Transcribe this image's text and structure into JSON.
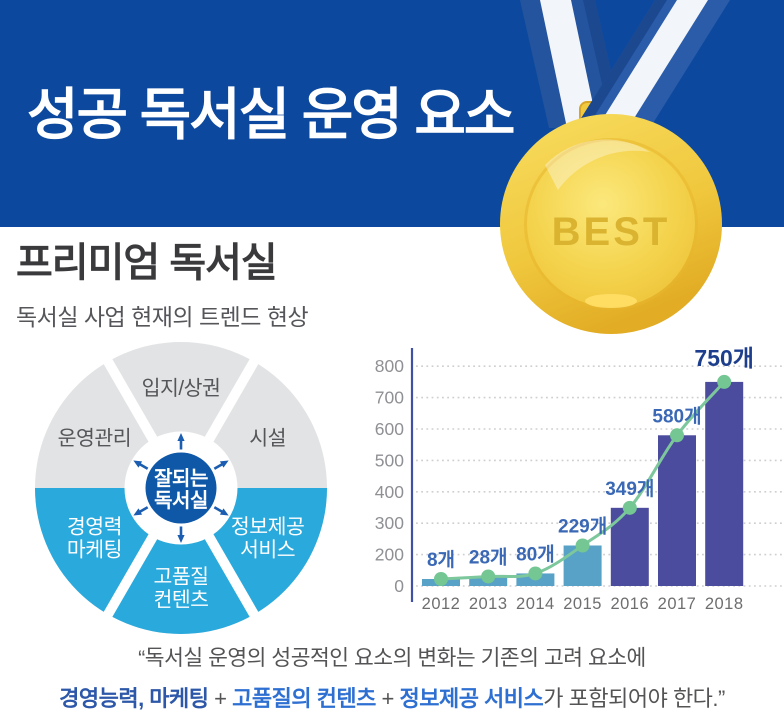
{
  "header": {
    "title": "성공 독서실 운영 요소",
    "background_color": "#0c499e"
  },
  "medal": {
    "label": "BEST",
    "gold_color": "#f0c83e",
    "ribbon_blue": "#2a5caa"
  },
  "section": {
    "title": "프리미엄 독서실",
    "subtitle": "독서실 사업 현재의 트렌드 현상"
  },
  "donut": {
    "center_label_lines": [
      "잘되는",
      "독서실"
    ],
    "segments": [
      {
        "lines": [
          "운영관리"
        ],
        "angle": 150,
        "group": "top"
      },
      {
        "lines": [
          "입지/상권"
        ],
        "angle": 90,
        "group": "top"
      },
      {
        "lines": [
          "시설"
        ],
        "angle": 30,
        "group": "top"
      },
      {
        "lines": [
          "경영력",
          "마케팅"
        ],
        "angle": 210,
        "group": "bottom"
      },
      {
        "lines": [
          "고품질",
          "컨텐츠"
        ],
        "angle": 270,
        "group": "bottom"
      },
      {
        "lines": [
          "정보제공",
          "서비스"
        ],
        "angle": 330,
        "group": "bottom"
      }
    ],
    "colors": {
      "top_segment": "#e2e3e4",
      "bottom_segment": "#29a9dc",
      "center_circle": "#0f58a8",
      "arrow": "#1b5db0",
      "top_text": "#55565a",
      "bottom_text": "#ffffff",
      "center_text": "#ffffff"
    }
  },
  "chart_data": {
    "type": "bar",
    "title": "",
    "categories": [
      "2012",
      "2013",
      "2014",
      "2015",
      "2016",
      "2017",
      "2018"
    ],
    "values": [
      8,
      28,
      80,
      229,
      349,
      580,
      750
    ],
    "value_labels": [
      "8개",
      "28개",
      "80개",
      "229개",
      "349개",
      "580개",
      "750개"
    ],
    "series_overlay": {
      "type": "line",
      "values": [
        8,
        28,
        80,
        229,
        349,
        580,
        750
      ]
    },
    "y_tick_labels": [
      800,
      700,
      600,
      500,
      400,
      300,
      200,
      0
    ],
    "ylim": [
      0,
      800
    ],
    "grid": "dotted horizontal",
    "xlabel": "",
    "ylabel": "",
    "colors": {
      "bar_light": "#58a1c7",
      "bar_dark": "#4c4c9e",
      "bar_light_years": [
        "2012",
        "2013",
        "2014",
        "2015"
      ],
      "bar_dark_years": [
        "2016",
        "2017",
        "2018"
      ],
      "line": "#7cc79b",
      "marker": "#74c693",
      "value_label": "#3a68b5",
      "value_label_last": "#1d3e8c",
      "axis_line": "#3f51a5",
      "gridline": "#cfcfcf",
      "y_tick_text": "#8f9094",
      "x_tick_text": "#6e6e70"
    }
  },
  "quote": {
    "line1": "“독서실 운영의 성공적인 요소의 변화는 기존의 고려 요소에",
    "line2_part1": "경영능력, 마케팅",
    "line2_plus1": " + ",
    "line2_part2": "고품질의 컨텐츠",
    "line2_plus2": " + ",
    "line2_part3": "정보제공 서비스",
    "line2_tail": "가 포함되어야 한다.”"
  }
}
